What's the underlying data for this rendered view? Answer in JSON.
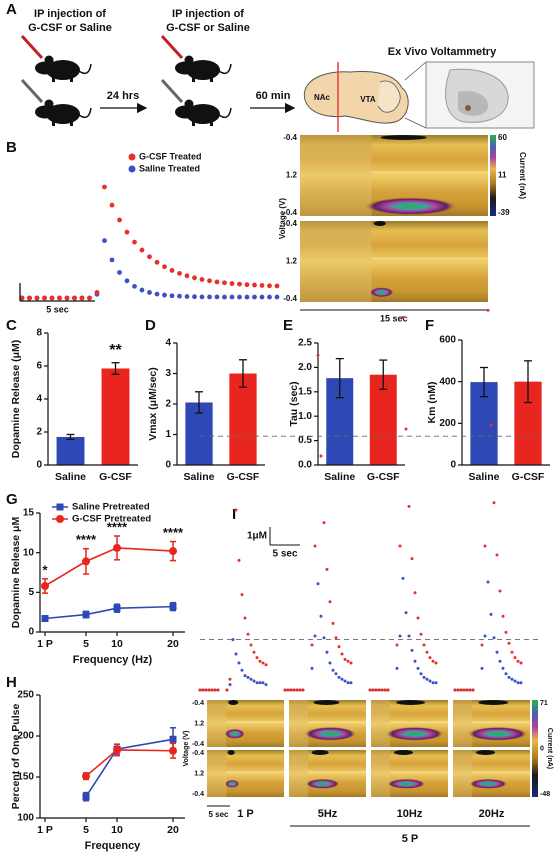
{
  "schematic": {
    "panel": "A",
    "step1": [
      "IP injection of",
      "G-CSF or Saline"
    ],
    "step2": [
      "IP injection of",
      "G-CSF or Saline"
    ],
    "interval1": "24 hrs",
    "interval2": "60 min",
    "method": "Ex Vivo Voltammetry",
    "regions": [
      "NAc",
      "VTA"
    ]
  },
  "chart_data": [
    {
      "type": "dot_trace",
      "panel": "B",
      "legend": "upper right",
      "x": [
        0,
        0.5,
        1,
        1.5,
        2,
        2.5,
        3,
        3.5,
        4,
        4.5,
        5,
        5.5,
        6,
        6.5,
        7,
        7.5,
        8,
        8.5,
        9,
        9.5,
        10,
        10.5,
        11,
        11.5,
        12,
        12.5,
        13,
        13.5,
        14,
        14.5,
        15,
        15.5,
        16,
        16.5,
        17
      ],
      "series": [
        {
          "name": "G-CSF Treated",
          "color": "#e8302a",
          "values": [
            0,
            0,
            0,
            0,
            0,
            0,
            0,
            0,
            0,
            0,
            0.3,
            6.0,
            5.02,
            4.22,
            3.56,
            3.02,
            2.59,
            2.23,
            1.93,
            1.69,
            1.49,
            1.33,
            1.2,
            1.09,
            1.0,
            0.93,
            0.87,
            0.82,
            0.78,
            0.75,
            0.72,
            0.7,
            0.68,
            0.66,
            0.65
          ]
        },
        {
          "name": "Saline Treated",
          "color": "#3a52c4",
          "values": [
            0,
            0,
            0,
            0,
            0,
            0,
            0,
            0,
            0,
            0,
            0.2,
            3.1,
            2.06,
            1.38,
            0.93,
            0.63,
            0.43,
            0.3,
            0.21,
            0.16,
            0.12,
            0.1,
            0.08,
            0.07,
            0.06,
            0.06,
            0.06,
            0.05,
            0.05,
            0.05,
            0.05,
            0.05,
            0.05,
            0.05,
            0.05
          ]
        }
      ],
      "scale_x": {
        "value": 5,
        "label": "5 sec"
      }
    },
    {
      "type": "heatmap",
      "ylabel": "Voltage (V)",
      "yticks": [
        -0.4,
        1.2,
        -0.4
      ],
      "colorbar_label": "Current (nA)",
      "colorbar_ticks": [
        60,
        11,
        -39
      ],
      "scale_x": {
        "value": 15,
        "label": "15 sec"
      }
    },
    {
      "type": "bar",
      "panel": "C",
      "ylabel": "Dopamine Release (μM)",
      "categories": [
        "Saline",
        "G-CSF"
      ],
      "values": [
        1.7,
        5.85
      ],
      "errors": [
        0.15,
        0.35
      ],
      "colors": [
        "#2e49b5",
        "#e8261f"
      ],
      "annotations": [
        null,
        "**"
      ],
      "ylim": [
        0,
        8
      ],
      "yticks": [
        0,
        2,
        4,
        6,
        8
      ]
    },
    {
      "type": "bar",
      "panel": "D",
      "ylabel": "Vmax (μM/sec)",
      "categories": [
        "Saline",
        "G-CSF"
      ],
      "values": [
        2.05,
        3.0
      ],
      "errors": [
        0.35,
        0.45
      ],
      "colors": [
        "#2e49b5",
        "#e8261f"
      ],
      "ylim": [
        0,
        4
      ],
      "yticks": [
        0,
        1,
        2,
        3,
        4
      ]
    },
    {
      "type": "bar",
      "panel": "E",
      "ylabel": "Tau (sec)",
      "categories": [
        "Saline",
        "G-CSF"
      ],
      "values": [
        1.78,
        1.85
      ],
      "errors": [
        0.4,
        0.3
      ],
      "colors": [
        "#2e49b5",
        "#e8261f"
      ],
      "ylim": [
        0,
        2.5
      ],
      "yticks": [
        {
          "value": 0,
          "label": "0.0"
        },
        0.5,
        {
          "value": 1,
          "label": "1.0"
        },
        1.5,
        {
          "value": 2,
          "label": "2.0"
        },
        2.5
      ]
    },
    {
      "type": "bar",
      "panel": "F",
      "ylabel": "Km (nM)",
      "categories": [
        "Saline",
        "G-CSF"
      ],
      "values": [
        398,
        400
      ],
      "errors": [
        70,
        100
      ],
      "colors": [
        "#2e49b5",
        "#e8261f"
      ],
      "ylim": [
        0,
        600
      ],
      "yticks": [
        0,
        200,
        400,
        600
      ]
    },
    {
      "type": "line",
      "panel": "G",
      "legend": "upper left",
      "xlabel": "Frequency (Hz)",
      "ylabel": "Dopamine Release μM",
      "categories": [
        "1 P",
        "5",
        "10",
        "20"
      ],
      "ylim": [
        0,
        15
      ],
      "yticks": [
        0,
        5,
        10,
        15
      ],
      "series": [
        {
          "name": "Saline Pretreated",
          "color": "#2e49b5",
          "marker": "square",
          "values": [
            1.7,
            2.2,
            3.0,
            3.2
          ],
          "errors": [
            0.2,
            0.4,
            0.5,
            0.5
          ]
        },
        {
          "name": "G-CSF Pretreated",
          "color": "#e8261f",
          "marker": "circle",
          "values": [
            5.8,
            8.9,
            10.6,
            10.2
          ],
          "errors": [
            0.9,
            1.6,
            1.5,
            1.2
          ]
        }
      ],
      "annotations": [
        "*",
        "****",
        "****",
        "****"
      ]
    },
    {
      "type": "line",
      "panel": "H",
      "xlabel": "Frequency",
      "ylabel": "Percent of One Pulse",
      "categories": [
        "1 P",
        "5",
        "10",
        "20"
      ],
      "ylim": [
        100,
        250
      ],
      "yticks": [
        100,
        150,
        200,
        250
      ],
      "series": [
        {
          "color": "#2e49b5",
          "marker": "square",
          "values": [
            null,
            126,
            184,
            196
          ],
          "errors": [
            null,
            5,
            6,
            14
          ]
        },
        {
          "color": "#e8261f",
          "marker": "circle",
          "values": [
            null,
            151,
            183,
            182
          ],
          "errors": [
            null,
            4,
            7,
            9
          ]
        }
      ]
    },
    {
      "type": "trace_panels",
      "panel": "I",
      "x": [
        0,
        0.5,
        1,
        1.5,
        2,
        2.5,
        3,
        4.5,
        5,
        5.5,
        6,
        6.5,
        7,
        7.5,
        8,
        8.5,
        9,
        9.5,
        10,
        10.5,
        11
      ],
      "scale_x": {
        "value": 5,
        "label": "5 sec"
      },
      "scale_y": {
        "value": 1,
        "label": "1μM"
      },
      "traces": [
        {
          "label": "1 P",
          "series": [
            {
              "color": "#e8302a",
              "values": [
                0,
                0,
                0,
                0,
                0,
                0,
                0,
                0,
                0.6,
                14.1,
                10.0,
                7.2,
                5.3,
                4.0,
                3.1,
                2.5,
                2.1,
                1.8,
                1.6,
                1.5,
                1.4
              ]
            },
            {
              "color": "#3a52c4",
              "values": [
                0,
                0,
                0,
                0,
                0,
                0,
                0,
                0,
                0.3,
                2.8,
                2.0,
                1.5,
                1.1,
                0.8,
                0.7,
                0.6,
                0.5,
                0.4,
                0.4,
                0.4,
                0.3
              ]
            }
          ]
        },
        {
          "label": "5Hz",
          "series": [
            {
              "color": "#e8302a",
              "values": [
                0,
                0,
                0,
                0,
                0,
                0,
                0,
                2.5,
                8,
                18.6,
                13.0,
                9.3,
                6.7,
                4.9,
                3.7,
                2.9,
                2.4,
                2.0,
                1.7,
                1.6,
                1.5
              ]
            },
            {
              "color": "#3a52c4",
              "values": [
                0,
                0,
                0,
                0,
                0,
                0,
                0,
                1.2,
                3,
                5.9,
                4.1,
                2.9,
                2.1,
                1.5,
                1.1,
                0.9,
                0.7,
                0.6,
                0.5,
                0.4,
                0.4
              ]
            }
          ]
        },
        {
          "label": "10Hz",
          "series": [
            {
              "color": "#e8302a",
              "values": [
                0,
                0,
                0,
                0,
                0,
                0,
                0,
                2.5,
                8,
                20.7,
                14.5,
                10.2,
                7.3,
                5.4,
                4.0,
                3.1,
                2.5,
                2.1,
                1.8,
                1.6,
                1.5
              ]
            },
            {
              "color": "#3a52c4",
              "values": [
                0,
                0,
                0,
                0,
                0,
                0,
                0,
                1.2,
                3,
                6.2,
                4.3,
                3.0,
                2.2,
                1.6,
                1.2,
                0.9,
                0.7,
                0.6,
                0.5,
                0.4,
                0.4
              ]
            }
          ]
        },
        {
          "label": "20Hz",
          "series": [
            {
              "color": "#e8302a",
              "values": [
                0,
                0,
                0,
                0,
                0,
                0,
                0,
                2.5,
                8,
                21.1,
                14.7,
                10.4,
                7.5,
                5.5,
                4.1,
                3.2,
                2.6,
                2.1,
                1.8,
                1.6,
                1.5
              ]
            },
            {
              "color": "#3a52c4",
              "values": [
                0,
                0,
                0,
                0,
                0,
                0,
                0,
                1.2,
                3,
                6.0,
                4.2,
                2.9,
                2.1,
                1.6,
                1.2,
                0.9,
                0.7,
                0.6,
                0.5,
                0.4,
                0.4
              ]
            }
          ]
        }
      ]
    },
    {
      "type": "heatmap",
      "ylabel": "Voltage (V)",
      "yticks": [
        -0.4,
        1.2,
        -0.4
      ],
      "colorbar_label": "Current (nA)",
      "colorbar_ticks": [
        71,
        0,
        -48
      ],
      "scale_x": {
        "value": 5,
        "label": "5 sec"
      },
      "group_label": "5 P"
    }
  ]
}
